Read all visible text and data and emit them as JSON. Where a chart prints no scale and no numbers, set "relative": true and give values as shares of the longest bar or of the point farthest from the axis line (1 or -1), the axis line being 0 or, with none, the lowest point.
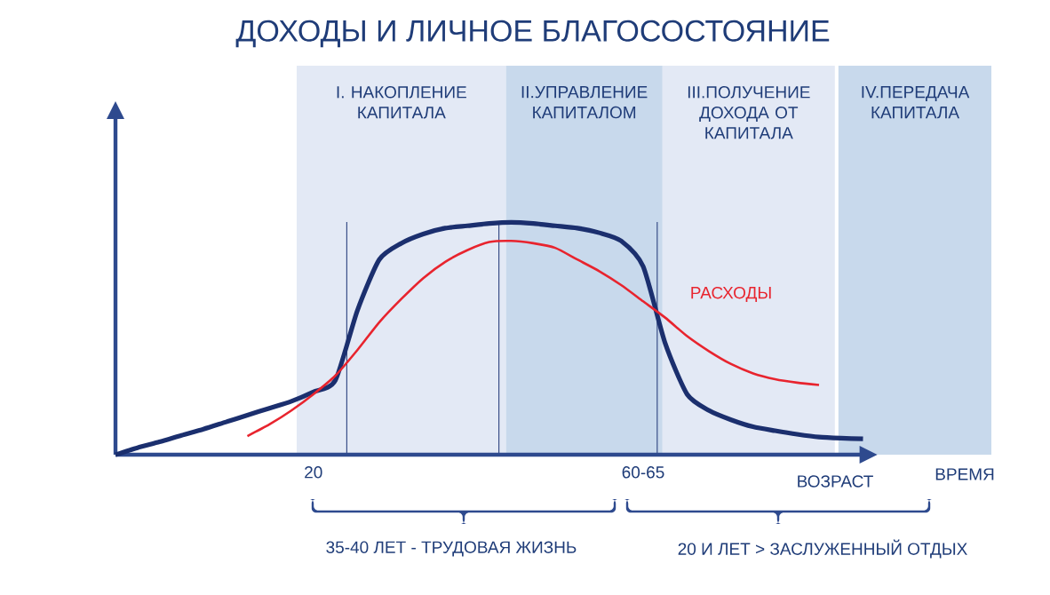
{
  "chart_data": {
    "type": "line",
    "title": "ДОХОДЫ И ЛИЧНОЕ БЛАГОСОСТОЯНИЕ",
    "relative": true,
    "categories": [
      null,
      null,
      null,
      null,
      null,
      null,
      null,
      null,
      null,
      "20",
      null,
      null,
      null,
      null,
      null,
      null,
      null,
      null,
      null,
      null,
      null,
      null,
      null,
      null,
      "60-65",
      null,
      null,
      null,
      null,
      null,
      null,
      null,
      null,
      null,
      null
    ],
    "tick_labels": "x",
    "series": [
      {
        "color": "#1b2f6e",
        "values": [
          0,
          0.03,
          0.055,
          0.083,
          0.11,
          0.14,
          0.17,
          0.2,
          0.23,
          0.27,
          0.32,
          0.62,
          0.84,
          0.91,
          0.95,
          0.975,
          0.985,
          0.995,
          1,
          0.995,
          0.985,
          0.975,
          0.955,
          0.92,
          0.81,
          0.48,
          0.26,
          0.19,
          0.15,
          0.12,
          0.103,
          0.088,
          0.076,
          0.071,
          0.068
        ]
      },
      {
        "name": "РАСХОДЫ",
        "color": "#e8242e",
        "values": [
          null,
          null,
          null,
          null,
          null,
          null,
          0.08,
          0.13,
          0.19,
          0.26,
          0.34,
          0.45,
          0.57,
          0.67,
          0.76,
          0.83,
          0.88,
          0.915,
          0.92,
          0.91,
          0.89,
          0.84,
          0.79,
          0.73,
          0.66,
          0.59,
          0.51,
          0.445,
          0.39,
          0.35,
          0.325,
          0.31,
          0.3,
          null,
          null
        ]
      }
    ],
    "annotations": [
      "I.   НАКОПЛЕНИЕ КАПИТАЛА",
      "II.УПРАВЛЕНИЕ КАПИТАЛОМ",
      "III.ПОЛУЧЕНИЕ ДОХОДА ОТ КАПИТАЛА",
      "IV.ПЕРЕДАЧА КАПИТАЛА",
      "ВРЕМЯ",
      "ВОЗРАСТ",
      "35-40 ЛЕТ - ТРУДОВАЯ ЖИЗНЬ",
      "20 И ЛЕТ > ЗАСЛУЖЕННЫЙ ОТДЫХ"
    ],
    "grid": false,
    "legend": false,
    "marker": "none",
    "line_style": "solid"
  }
}
